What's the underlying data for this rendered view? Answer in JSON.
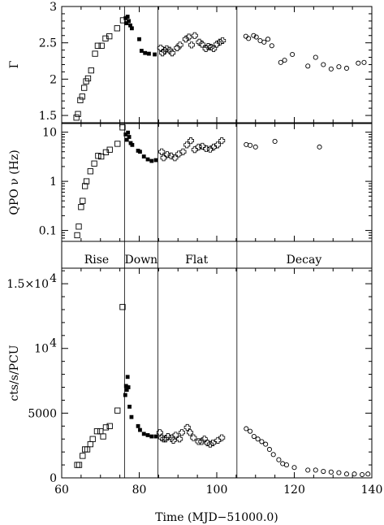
{
  "chart_data": [
    {
      "type": "scatter",
      "panel": "gamma",
      "ylabel": "Γ",
      "ylim": [
        1.4,
        3.0
      ],
      "yticks": [
        {
          "v": 1.5,
          "label": "1.5"
        },
        {
          "v": 2,
          "label": "2"
        },
        {
          "v": 2.5,
          "label": "2.5"
        },
        {
          "v": 3,
          "label": "3"
        }
      ],
      "series": [
        {
          "marker": "open-square",
          "points": [
            [
              63.8,
              1.47
            ],
            [
              64.2,
              1.52
            ],
            [
              64.8,
              1.71
            ],
            [
              65.3,
              1.76
            ],
            [
              65.8,
              1.88
            ],
            [
              66.3,
              1.97
            ],
            [
              66.8,
              2.01
            ],
            [
              67.6,
              2.12
            ],
            [
              68.6,
              2.35
            ],
            [
              69.3,
              2.46
            ],
            [
              70.3,
              2.46
            ],
            [
              71.3,
              2.56
            ],
            [
              72.3,
              2.59
            ],
            [
              74.3,
              2.7
            ],
            [
              75.8,
              2.81
            ]
          ]
        },
        {
          "marker": "filled-square",
          "points": [
            [
              76.5,
              2.84
            ],
            [
              76.7,
              2.77
            ],
            [
              77.0,
              2.86
            ],
            [
              77.3,
              2.8
            ],
            [
              77.7,
              2.74
            ],
            [
              78.1,
              2.7
            ],
            [
              80.0,
              2.55
            ],
            [
              80.6,
              2.39
            ],
            [
              81.5,
              2.36
            ],
            [
              82.5,
              2.35
            ],
            [
              84.0,
              2.34
            ]
          ]
        },
        {
          "marker": "open-cross",
          "points": [
            [
              85.5,
              2.43
            ],
            [
              86.0,
              2.36
            ],
            [
              86.6,
              2.39
            ],
            [
              87.1,
              2.42
            ],
            [
              87.8,
              2.4
            ],
            [
              88.5,
              2.36
            ],
            [
              89.8,
              2.43
            ],
            [
              90.5,
              2.47
            ],
            [
              92.0,
              2.55
            ],
            [
              92.8,
              2.58
            ],
            [
              93.5,
              2.47
            ],
            [
              94.3,
              2.6
            ],
            [
              95.5,
              2.51
            ],
            [
              96.2,
              2.48
            ],
            [
              97.2,
              2.42
            ],
            [
              97.8,
              2.45
            ],
            [
              98.5,
              2.44
            ],
            [
              99.2,
              2.42
            ],
            [
              100.0,
              2.48
            ],
            [
              100.8,
              2.51
            ],
            [
              101.5,
              2.53
            ]
          ]
        },
        {
          "marker": "open-circle",
          "points": [
            [
              107.5,
              2.59
            ],
            [
              108.2,
              2.56
            ],
            [
              109.5,
              2.6
            ],
            [
              110.2,
              2.58
            ],
            [
              111.2,
              2.53
            ],
            [
              112.2,
              2.51
            ],
            [
              113.2,
              2.55
            ],
            [
              114.2,
              2.46
            ],
            [
              116.5,
              2.23
            ],
            [
              117.5,
              2.26
            ],
            [
              119.5,
              2.34
            ],
            [
              123.5,
              2.18
            ],
            [
              125.5,
              2.3
            ],
            [
              127.5,
              2.2
            ],
            [
              129.5,
              2.14
            ],
            [
              131.5,
              2.17
            ],
            [
              133.5,
              2.15
            ],
            [
              136.5,
              2.22
            ],
            [
              138.0,
              2.23
            ]
          ]
        }
      ]
    },
    {
      "type": "scatter",
      "panel": "qpo",
      "ylabel": "QPO ν (Hz)",
      "scale": "log",
      "ylim": [
        0.06,
        15
      ],
      "yticks": [
        {
          "v": 0.1,
          "label": "0.1"
        },
        {
          "v": 1,
          "label": "1"
        },
        {
          "v": 10,
          "label": "10"
        }
      ],
      "series": [
        {
          "marker": "open-square",
          "points": [
            [
              64.0,
              0.08
            ],
            [
              64.4,
              0.12
            ],
            [
              65.0,
              0.3
            ],
            [
              65.4,
              0.4
            ],
            [
              66.0,
              0.8
            ],
            [
              66.4,
              1.0
            ],
            [
              67.4,
              1.6
            ],
            [
              68.4,
              2.3
            ],
            [
              69.4,
              3.3
            ],
            [
              70.2,
              3.2
            ],
            [
              71.4,
              3.9
            ],
            [
              72.4,
              4.4
            ],
            [
              74.4,
              5.8
            ],
            [
              75.7,
              12.5
            ]
          ]
        },
        {
          "marker": "filled-square",
          "points": [
            [
              76.5,
              9.0
            ],
            [
              76.8,
              7.0
            ],
            [
              77.1,
              9.8
            ],
            [
              77.4,
              8.0
            ],
            [
              77.8,
              6.0
            ],
            [
              78.2,
              5.5
            ],
            [
              79.7,
              4.2
            ],
            [
              80.2,
              4.0
            ],
            [
              81.2,
              3.2
            ],
            [
              82.2,
              2.8
            ],
            [
              83.2,
              2.6
            ],
            [
              84.3,
              2.7
            ]
          ]
        },
        {
          "marker": "open-cross",
          "points": [
            [
              85.8,
              4.0
            ],
            [
              86.3,
              3.0
            ],
            [
              87.2,
              3.5
            ],
            [
              88.2,
              3.3
            ],
            [
              89.2,
              3.0
            ],
            [
              90.2,
              3.6
            ],
            [
              91.3,
              4.0
            ],
            [
              92.3,
              5.5
            ],
            [
              93.3,
              6.7
            ],
            [
              94.3,
              4.4
            ],
            [
              95.3,
              5.0
            ],
            [
              96.3,
              5.2
            ],
            [
              97.3,
              4.6
            ],
            [
              98.3,
              4.5
            ],
            [
              99.2,
              5.0
            ],
            [
              100.2,
              5.5
            ],
            [
              101.3,
              6.7
            ]
          ]
        },
        {
          "marker": "open-circle",
          "points": [
            [
              107.6,
              5.6
            ],
            [
              108.6,
              5.4
            ],
            [
              110.0,
              5.0
            ],
            [
              115.0,
              6.5
            ],
            [
              126.5,
              5.0
            ]
          ]
        }
      ]
    },
    {
      "type": "scatter",
      "panel": "rate",
      "ylabel": "cts/s/PCU",
      "xlabel": "Time (MJD−51000.0)",
      "xlim": [
        60,
        140
      ],
      "xticks": [
        60,
        80,
        100,
        120,
        140
      ],
      "ylim": [
        0,
        16200
      ],
      "yticks": [
        {
          "v": 0,
          "label": "0"
        },
        {
          "v": 5000,
          "label": "5000"
        },
        {
          "v": 10000,
          "label": "10",
          "exp": "4"
        },
        {
          "v": 15000,
          "label": "1.5×10",
          "exp": "4"
        }
      ],
      "phases": [
        {
          "label": "Rise",
          "x": 69
        },
        {
          "label": "Down",
          "x": 80.5
        },
        {
          "label": "Flat",
          "x": 94.8
        },
        {
          "label": "Decay",
          "x": 122.5
        }
      ],
      "vlines": [
        76.2,
        84.8,
        105.2
      ],
      "series": [
        {
          "marker": "open-square",
          "points": [
            [
              64.0,
              1000
            ],
            [
              64.5,
              1000
            ],
            [
              65.4,
              1700
            ],
            [
              66.0,
              2200
            ],
            [
              66.6,
              2200
            ],
            [
              67.4,
              2600
            ],
            [
              68.0,
              3000
            ],
            [
              69.1,
              3600
            ],
            [
              70.0,
              3600
            ],
            [
              70.7,
              3200
            ],
            [
              71.4,
              3900
            ],
            [
              72.4,
              4000
            ],
            [
              74.4,
              5200
            ],
            [
              75.7,
              13200
            ]
          ]
        },
        {
          "marker": "filled-square",
          "points": [
            [
              76.4,
              6400
            ],
            [
              76.6,
              7100
            ],
            [
              76.8,
              6800
            ],
            [
              77.0,
              7800
            ],
            [
              77.2,
              7000
            ],
            [
              77.5,
              5500
            ],
            [
              78.0,
              4700
            ],
            [
              79.7,
              4000
            ],
            [
              80.2,
              3700
            ],
            [
              81.2,
              3400
            ],
            [
              82.2,
              3300
            ],
            [
              83.2,
              3200
            ],
            [
              84.3,
              3200
            ]
          ]
        },
        {
          "marker": "open-cross",
          "points": [
            [
              85.3,
              3500
            ],
            [
              85.8,
              3100
            ],
            [
              86.3,
              3000
            ],
            [
              86.8,
              3000
            ],
            [
              87.4,
              3200
            ],
            [
              88.4,
              3100
            ],
            [
              88.8,
              2900
            ],
            [
              89.4,
              3300
            ],
            [
              90.4,
              3000
            ],
            [
              91.0,
              3500
            ],
            [
              92.4,
              3900
            ],
            [
              93.1,
              3500
            ],
            [
              94.0,
              3100
            ],
            [
              95.3,
              2800
            ],
            [
              96.1,
              2800
            ],
            [
              96.8,
              3000
            ],
            [
              97.6,
              2700
            ],
            [
              98.3,
              2600
            ],
            [
              99.0,
              2700
            ],
            [
              100.3,
              2900
            ],
            [
              101.3,
              3100
            ]
          ]
        },
        {
          "marker": "open-circle",
          "points": [
            [
              107.6,
              3800
            ],
            [
              108.6,
              3600
            ],
            [
              109.6,
              3200
            ],
            [
              110.6,
              3000
            ],
            [
              111.6,
              2800
            ],
            [
              112.6,
              2600
            ],
            [
              113.6,
              2200
            ],
            [
              114.6,
              1800
            ],
            [
              116.0,
              1400
            ],
            [
              117.0,
              1100
            ],
            [
              118.0,
              1000
            ],
            [
              120.0,
              800
            ],
            [
              123.5,
              600
            ],
            [
              125.5,
              600
            ],
            [
              127.5,
              500
            ],
            [
              129.5,
              450
            ],
            [
              131.5,
              400
            ],
            [
              133.5,
              300
            ],
            [
              135.5,
              300
            ],
            [
              137.5,
              250
            ],
            [
              139.0,
              300
            ]
          ]
        }
      ]
    }
  ]
}
